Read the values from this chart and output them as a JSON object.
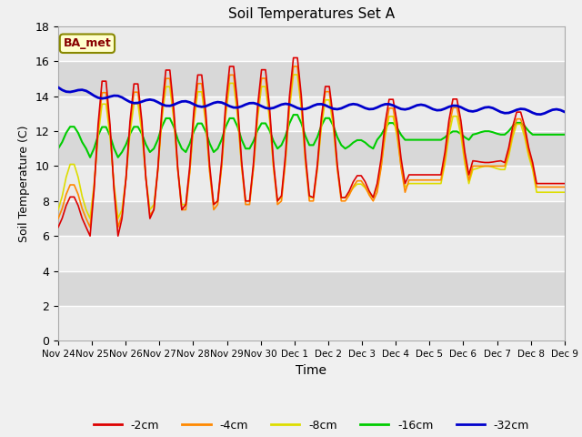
{
  "title": "Soil Temperatures Set A",
  "xlabel": "Time",
  "ylabel": "Soil Temperature (C)",
  "ylim": [
    0,
    18
  ],
  "yticks": [
    0,
    2,
    4,
    6,
    8,
    10,
    12,
    14,
    16,
    18
  ],
  "annotation_label": "BA_met",
  "colors": {
    "-2cm": "#dd0000",
    "-4cm": "#ff8800",
    "-8cm": "#dddd00",
    "-16cm": "#00cc00",
    "-32cm": "#0000cc"
  },
  "legend_labels": [
    "-2cm",
    "-4cm",
    "-8cm",
    "-16cm",
    "-32cm"
  ],
  "background_color": "#f0f0f0",
  "plot_bg_color": "#d8d8d8",
  "white_band_color": "#ebebeb",
  "xtick_labels": [
    "Nov 24",
    "Nov 25",
    "Nov 26",
    "Nov 27",
    "Nov 28",
    "Nov 29",
    "Nov 30",
    "Dec 1",
    "Dec 2",
    "Dec 3",
    "Dec 4",
    "Dec 5",
    "Dec 6",
    "Dec 7",
    "Dec 8",
    "Dec 9"
  ],
  "n_days": 16,
  "pts_per_day": 8
}
